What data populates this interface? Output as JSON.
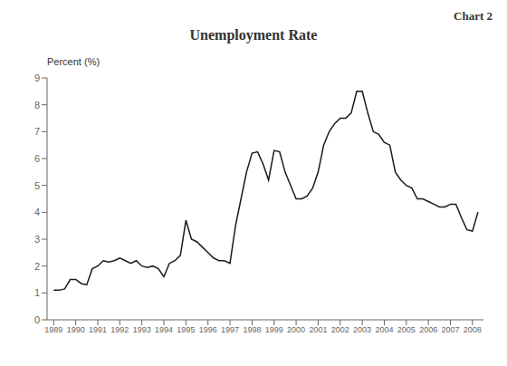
{
  "chart_data": {
    "type": "line",
    "title": "Unemployment Rate",
    "annotations": [
      "Chart 2"
    ],
    "ylabel": "Percent (%)",
    "color": "#1a1a1a",
    "grid": false,
    "xlim": [
      1988.7,
      2008.5
    ],
    "xticks": [
      1989,
      1990,
      1991,
      1992,
      1993,
      1994,
      1995,
      1996,
      1997,
      1998,
      1999,
      2000,
      2001,
      2002,
      2003,
      2004,
      2005,
      2006,
      2007,
      2008
    ],
    "ylim": [
      0,
      9
    ],
    "yticks": [
      0,
      1,
      2,
      3,
      4,
      5,
      6,
      7,
      8,
      9
    ],
    "x": [
      1989.0,
      1989.25,
      1989.5,
      1989.75,
      1990.0,
      1990.25,
      1990.5,
      1990.75,
      1991.0,
      1991.25,
      1991.5,
      1991.75,
      1992.0,
      1992.25,
      1992.5,
      1992.75,
      1993.0,
      1993.25,
      1993.5,
      1993.75,
      1994.0,
      1994.25,
      1994.5,
      1994.75,
      1995.0,
      1995.25,
      1995.5,
      1995.75,
      1996.0,
      1996.25,
      1996.5,
      1996.75,
      1997.0,
      1997.25,
      1997.5,
      1997.75,
      1998.0,
      1998.25,
      1998.5,
      1998.75,
      1999.0,
      1999.25,
      1999.5,
      1999.75,
      2000.0,
      2000.25,
      2000.5,
      2000.75,
      2001.0,
      2001.25,
      2001.5,
      2001.75,
      2002.0,
      2002.25,
      2002.5,
      2002.75,
      2003.0,
      2003.25,
      2003.5,
      2003.75,
      2004.0,
      2004.25,
      2004.5,
      2004.75,
      2005.0,
      2005.25,
      2005.5,
      2005.75,
      2006.0,
      2006.25,
      2006.5,
      2006.75,
      2007.0,
      2007.25,
      2007.5,
      2007.75,
      2008.0,
      2008.25
    ],
    "values": [
      1.1,
      1.1,
      1.15,
      1.5,
      1.5,
      1.35,
      1.3,
      1.9,
      2.0,
      2.2,
      2.15,
      2.2,
      2.3,
      2.2,
      2.1,
      2.2,
      2.0,
      1.95,
      2.0,
      1.9,
      1.6,
      2.1,
      2.2,
      2.4,
      3.7,
      3.0,
      2.9,
      2.7,
      2.5,
      2.3,
      2.2,
      2.2,
      2.1,
      3.5,
      4.5,
      5.5,
      6.2,
      6.25,
      5.8,
      5.2,
      6.3,
      6.25,
      5.5,
      5.0,
      4.5,
      4.5,
      4.6,
      4.9,
      5.5,
      6.5,
      7.0,
      7.3,
      7.5,
      7.5,
      7.7,
      8.5,
      8.5,
      7.7,
      7.0,
      6.9,
      6.6,
      6.5,
      5.5,
      5.2,
      5.0,
      4.9,
      4.5,
      4.5,
      4.4,
      4.3,
      4.2,
      4.2,
      4.3,
      4.3,
      3.8,
      3.35,
      3.3,
      4.0
    ]
  }
}
